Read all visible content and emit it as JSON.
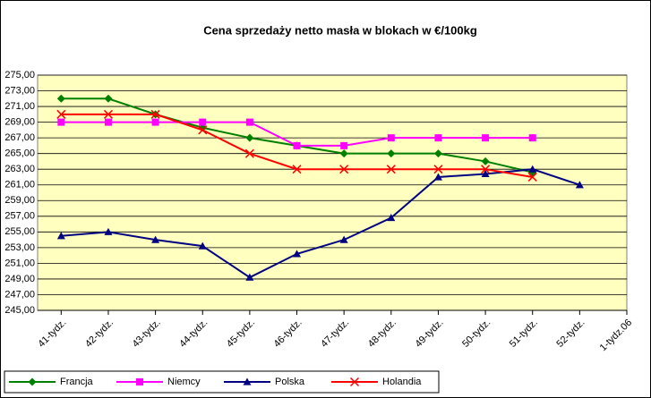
{
  "chart_data": {
    "type": "line",
    "title": "Cena sprzedaży netto masła w blokach w €/100kg",
    "categories": [
      "41-tydz.",
      "42-tydz.",
      "43-tydz.",
      "44-tydz.",
      "45-tydz.",
      "46-tydz.",
      "47-tydz.",
      "48-tydz.",
      "49-tydz.",
      "50-tydz.",
      "51-tydz.",
      "52-tydz.",
      "1-tydz.06"
    ],
    "series": [
      {
        "name": "Francja",
        "color": "#008000",
        "marker": "diamond",
        "values": [
          272,
          272,
          270,
          268.3,
          267,
          266,
          265,
          265,
          265,
          264,
          262.6,
          null,
          null
        ]
      },
      {
        "name": "Niemcy",
        "color": "#ff00ff",
        "marker": "square",
        "values": [
          269,
          269,
          269,
          269,
          269,
          266,
          266,
          267,
          267,
          267,
          267,
          null,
          null
        ]
      },
      {
        "name": "Polska",
        "color": "#000080",
        "marker": "triangle",
        "values": [
          254.5,
          255,
          254,
          253.2,
          249.2,
          252.2,
          254,
          256.8,
          262,
          262.4,
          263,
          261,
          null
        ]
      },
      {
        "name": "Holandia",
        "color": "#ff0000",
        "marker": "x",
        "values": [
          270,
          270,
          270,
          268,
          265,
          263,
          263,
          263,
          263,
          263,
          262,
          null,
          null
        ]
      }
    ],
    "ylim": [
      245,
      275
    ],
    "yticks": [
      {
        "value": 245,
        "label": "245,00"
      },
      {
        "value": 247,
        "label": "247,00"
      },
      {
        "value": 249,
        "label": "249,00"
      },
      {
        "value": 251,
        "label": "251,00"
      },
      {
        "value": 253,
        "label": "253,00"
      },
      {
        "value": 255,
        "label": "255,00"
      },
      {
        "value": 257,
        "label": "257,00"
      },
      {
        "value": 259,
        "label": "259,00"
      },
      {
        "value": 261,
        "label": "261,00"
      },
      {
        "value": 263,
        "label": "263,00"
      },
      {
        "value": 265,
        "label": "265,00"
      },
      {
        "value": 267,
        "label": "267,00"
      },
      {
        "value": 269,
        "label": "269,00"
      },
      {
        "value": 271,
        "label": "271,00"
      },
      {
        "value": 273,
        "label": "273,00"
      },
      {
        "value": 275,
        "label": "275,00"
      }
    ],
    "grid": true,
    "legend": "bottom-left",
    "plot_background": "#ffffc0"
  }
}
